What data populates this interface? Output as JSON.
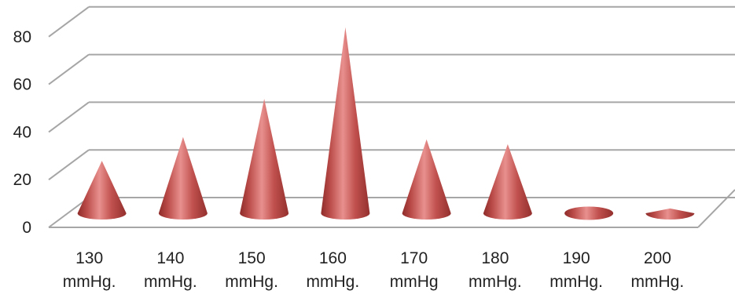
{
  "chart_data": {
    "type": "bar",
    "style": "3d-cone",
    "categories": [
      "130 mmHg.",
      "140 mmHg.",
      "150 mmHg.",
      "160 mmHg.",
      "170 mmHg",
      "180 mmHg.",
      "190 mmHg.",
      "200 mmHg."
    ],
    "category_lines": [
      [
        "130",
        "mmHg."
      ],
      [
        "140",
        "mmHg."
      ],
      [
        "150",
        "mmHg."
      ],
      [
        "160",
        "mmHg."
      ],
      [
        "170",
        "mmHg"
      ],
      [
        "180",
        "mmHg."
      ],
      [
        "190",
        "mmHg."
      ],
      [
        "200",
        "mmHg."
      ]
    ],
    "values": [
      22,
      32,
      48,
      78,
      31,
      29,
      1,
      2
    ],
    "ylim": [
      0,
      90
    ],
    "yticks": [
      "0",
      "20",
      "40",
      "60",
      "80"
    ],
    "grid": true,
    "colors": {
      "cone": "#c0504d",
      "cone_light": "#e8908e",
      "cone_dark": "#8e2c2a",
      "grid": "#a6a6a6"
    },
    "title": "",
    "xlabel": "",
    "ylabel": ""
  }
}
